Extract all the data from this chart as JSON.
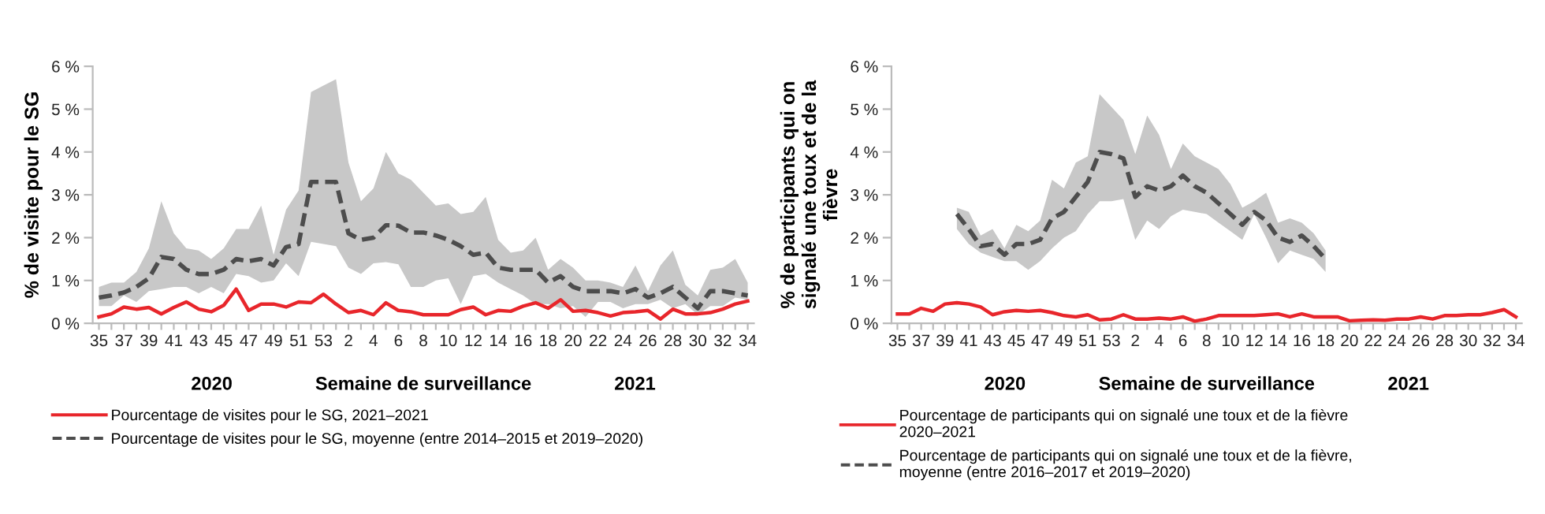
{
  "chart_data": [
    {
      "type": "line",
      "ylabel": "% de visite pour le SG",
      "xlabel": "Semaine de surveillance",
      "annotations": [
        "2020",
        "2021"
      ],
      "categories": [
        "35",
        null,
        "37",
        null,
        "39",
        null,
        "41",
        null,
        "43",
        null,
        "45",
        null,
        "47",
        null,
        "49",
        null,
        "51",
        null,
        "53",
        null,
        "2",
        null,
        "4",
        null,
        "6",
        null,
        "8",
        null,
        "10",
        null,
        "12",
        null,
        "14",
        null,
        "16",
        null,
        "18",
        null,
        "20",
        null,
        "22",
        null,
        "24",
        null,
        "26",
        null,
        "28",
        null,
        "30",
        null,
        "32",
        null,
        "34"
      ],
      "ylim": [
        0,
        6
      ],
      "yticks": [
        {
          "value": 0,
          "label": "0 %"
        },
        {
          "value": 1,
          "label": "1 %"
        },
        {
          "value": 2,
          "label": "2 %"
        },
        {
          "value": 3,
          "label": "3 %"
        },
        {
          "value": 4,
          "label": "4 %"
        },
        {
          "value": 5,
          "label": "5 %"
        },
        {
          "value": 6,
          "label": "6 %"
        }
      ],
      "legend": "bottom",
      "series": [
        {
          "name": "Pourcentage de visites pour le SG, 2021–2021",
          "color": "#e8262b",
          "line_style": "solid",
          "values": [
            0.15,
            0.22,
            0.38,
            0.33,
            0.37,
            0.22,
            0.37,
            0.5,
            0.33,
            0.27,
            0.42,
            0.8,
            0.3,
            0.45,
            0.45,
            0.38,
            0.5,
            0.48,
            0.68,
            0.45,
            0.25,
            0.3,
            0.2,
            0.48,
            0.3,
            0.27,
            0.2,
            0.2,
            0.2,
            0.32,
            0.38,
            0.2,
            0.3,
            0.28,
            0.4,
            0.48,
            0.35,
            0.55,
            0.28,
            0.3,
            0.25,
            0.17,
            0.25,
            0.27,
            0.3,
            0.1,
            0.33,
            0.22,
            0.22,
            0.25,
            0.33,
            0.45,
            0.52
          ]
        },
        {
          "name": "Pourcentage de visites pour le SG, moyenne (entre 2014–2015 et 2019–2020)",
          "color": "#4d4d4d",
          "line_style": "dashed",
          "values": [
            0.6,
            0.65,
            0.72,
            0.85,
            1.05,
            1.55,
            1.5,
            1.25,
            1.15,
            1.15,
            1.25,
            1.5,
            1.45,
            1.5,
            1.35,
            1.78,
            1.85,
            3.3,
            3.3,
            3.3,
            2.1,
            1.95,
            2.0,
            2.29,
            2.28,
            2.12,
            2.12,
            2.05,
            1.95,
            1.8,
            1.6,
            1.65,
            1.3,
            1.25,
            1.25,
            1.25,
            0.95,
            1.1,
            0.85,
            0.75,
            0.75,
            0.75,
            0.7,
            0.8,
            0.6,
            0.7,
            0.85,
            0.6,
            0.35,
            0.75,
            0.75,
            0.7,
            0.65
          ],
          "lower": [
            0.4,
            0.4,
            0.65,
            0.5,
            0.75,
            0.8,
            0.85,
            0.85,
            0.7,
            0.85,
            0.7,
            1.15,
            1.1,
            0.95,
            1.0,
            1.4,
            1.1,
            1.9,
            1.85,
            1.8,
            1.3,
            1.15,
            1.4,
            1.43,
            1.38,
            0.85,
            0.85,
            1.0,
            1.05,
            0.45,
            1.1,
            1.15,
            0.95,
            0.8,
            0.65,
            0.45,
            0.45,
            0.35,
            0.4,
            0.15,
            0.5,
            0.5,
            0.35,
            0.45,
            0.45,
            0.55,
            0.35,
            0.45,
            0.2,
            0.4,
            0.4,
            0.6,
            0.55
          ],
          "upper": [
            0.85,
            0.95,
            0.95,
            1.2,
            1.75,
            2.85,
            2.1,
            1.75,
            1.7,
            1.5,
            1.75,
            2.2,
            2.2,
            2.75,
            1.6,
            2.65,
            3.1,
            5.4,
            5.55,
            5.7,
            3.75,
            2.85,
            3.15,
            4.0,
            3.5,
            3.35,
            3.05,
            2.75,
            2.8,
            2.55,
            2.6,
            2.95,
            1.95,
            1.65,
            1.7,
            2.0,
            1.25,
            1.5,
            1.3,
            1.0,
            1.0,
            0.95,
            0.85,
            1.35,
            0.75,
            1.35,
            1.7,
            0.9,
            0.65,
            1.25,
            1.3,
            1.5,
            0.95
          ]
        }
      ]
    },
    {
      "type": "line",
      "ylabel": "% de participants qui on signalé une toux et de la fièvre",
      "xlabel": "Semaine de surveillance",
      "annotations": [
        "2020",
        "2021"
      ],
      "categories": [
        "35",
        null,
        "37",
        null,
        "39",
        null,
        "41",
        null,
        "43",
        null,
        "45",
        null,
        "47",
        null,
        "49",
        null,
        "51",
        null,
        "53",
        null,
        "2",
        null,
        "4",
        null,
        "6",
        null,
        "8",
        null,
        "10",
        null,
        "12",
        null,
        "14",
        null,
        "16",
        null,
        "18",
        null,
        "20",
        null,
        "22",
        null,
        "24",
        null,
        "26",
        null,
        "28",
        null,
        "30",
        null,
        "32",
        null,
        "34"
      ],
      "ylim": [
        0,
        6
      ],
      "yticks": [
        {
          "value": 0,
          "label": "0 %"
        },
        {
          "value": 1,
          "label": "1 %"
        },
        {
          "value": 2,
          "label": "2 %"
        },
        {
          "value": 3,
          "label": "3 %"
        },
        {
          "value": 4,
          "label": "4 %"
        },
        {
          "value": 5,
          "label": "5 %"
        },
        {
          "value": 6,
          "label": "6 %"
        }
      ],
      "legend": "bottom",
      "series": [
        {
          "name": "Pourcentage de participants qui on signalé une toux et de la fièvre 2020–2021",
          "color": "#e8262b",
          "line_style": "solid",
          "values": [
            0.22,
            0.22,
            0.35,
            0.28,
            0.45,
            0.48,
            0.45,
            0.38,
            0.2,
            0.27,
            0.3,
            0.28,
            0.3,
            0.25,
            0.18,
            0.15,
            0.2,
            0.08,
            0.1,
            0.2,
            0.1,
            0.1,
            0.12,
            0.1,
            0.15,
            0.05,
            0.1,
            0.18,
            0.18,
            0.18,
            0.18,
            0.2,
            0.22,
            0.15,
            0.22,
            0.15,
            0.15,
            0.15,
            0.06,
            0.07,
            0.08,
            0.07,
            0.1,
            0.1,
            0.15,
            0.1,
            0.18,
            0.18,
            0.2,
            0.2,
            0.25,
            0.32,
            0.15
          ]
        },
        {
          "name": "Pourcentage de participants qui on signalé une toux et de la fièvre, moyenne (entre 2016–2017 et 2019–2020)",
          "color": "#4d4d4d",
          "line_style": "dashed",
          "values": [
            null,
            null,
            null,
            null,
            null,
            2.55,
            2.2,
            1.8,
            1.85,
            1.6,
            1.85,
            1.85,
            1.95,
            2.45,
            2.6,
            2.95,
            3.3,
            4.0,
            3.95,
            3.85,
            2.95,
            3.2,
            3.1,
            3.2,
            3.45,
            3.2,
            3.05,
            2.8,
            2.55,
            2.3,
            2.6,
            2.4,
            2.0,
            1.9,
            2.05,
            1.8,
            1.5,
            null,
            null,
            null,
            null,
            null,
            null,
            null,
            null,
            null,
            null,
            null,
            null,
            null,
            null,
            null,
            null
          ],
          "lower": [
            null,
            null,
            null,
            null,
            null,
            2.2,
            1.85,
            1.65,
            1.55,
            1.45,
            1.45,
            1.25,
            1.45,
            1.75,
            2.0,
            2.15,
            2.55,
            2.85,
            2.85,
            2.9,
            1.95,
            2.4,
            2.2,
            2.5,
            2.65,
            2.6,
            2.55,
            2.35,
            2.15,
            1.95,
            2.55,
            2.0,
            1.4,
            1.7,
            1.6,
            1.5,
            1.2,
            null,
            null,
            null,
            null,
            null,
            null,
            null,
            null,
            null,
            null,
            null,
            null,
            null,
            null,
            null,
            null
          ],
          "upper": [
            null,
            null,
            null,
            null,
            null,
            2.7,
            2.6,
            2.05,
            2.2,
            1.75,
            2.3,
            2.15,
            2.4,
            3.35,
            3.15,
            3.75,
            3.9,
            5.35,
            5.05,
            4.75,
            3.95,
            4.85,
            4.4,
            3.6,
            4.2,
            3.9,
            3.75,
            3.6,
            3.25,
            2.7,
            2.85,
            3.05,
            2.35,
            2.45,
            2.35,
            2.1,
            1.7,
            null,
            null,
            null,
            null,
            null,
            null,
            null,
            null,
            null,
            null,
            null,
            null,
            null,
            null,
            null,
            null
          ]
        }
      ]
    }
  ]
}
